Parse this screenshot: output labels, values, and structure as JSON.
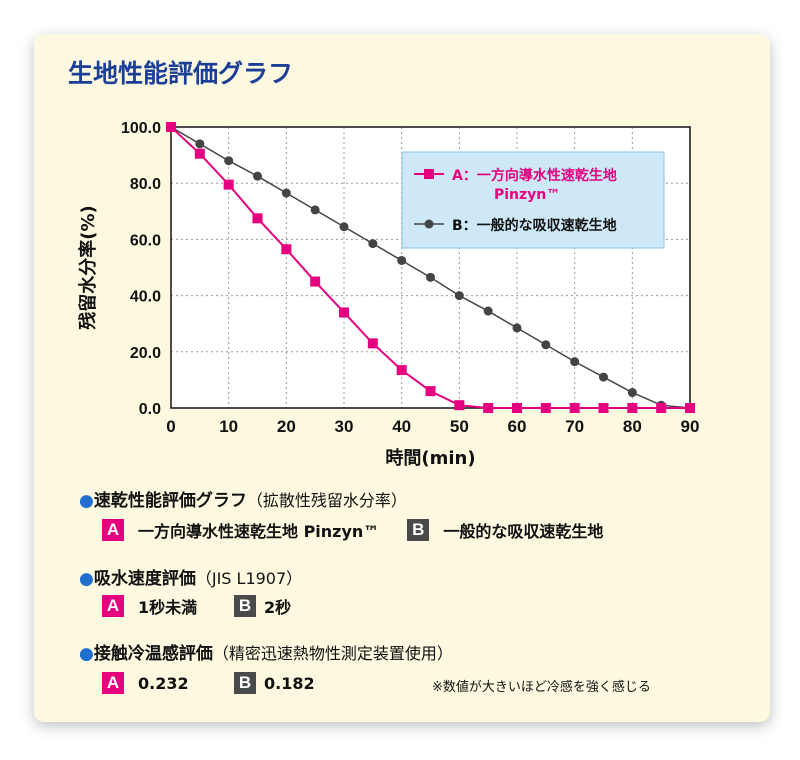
{
  "chart_data": {
    "type": "line",
    "title": "生地性能評価グラフ",
    "xlabel": "時間(min)",
    "ylabel": "残留水分率(%)",
    "xlim": [
      0,
      90
    ],
    "ylim": [
      0,
      100
    ],
    "x_ticks": [
      "0",
      "10",
      "20",
      "30",
      "40",
      "50",
      "60",
      "70",
      "80",
      "90"
    ],
    "y_ticks": [
      "0.0",
      "20.0",
      "40.0",
      "60.0",
      "80.0",
      "100.0"
    ],
    "legend_position": "top-right",
    "series": [
      {
        "name": "A：一方向導水性速乾生地",
        "name_line2": "Pinzyn™",
        "color": "#e5007f",
        "marker": "square",
        "points": [
          [
            0,
            100
          ],
          [
            5,
            90.5
          ],
          [
            10,
            79.5
          ],
          [
            15,
            67.5
          ],
          [
            20,
            56.5
          ],
          [
            25,
            45
          ],
          [
            30,
            34
          ],
          [
            35,
            23
          ],
          [
            40,
            13.5
          ],
          [
            45,
            6
          ],
          [
            50,
            1
          ],
          [
            55,
            0
          ],
          [
            60,
            0
          ],
          [
            65,
            0
          ],
          [
            70,
            0
          ],
          [
            75,
            0
          ],
          [
            80,
            0
          ],
          [
            85,
            0
          ],
          [
            90,
            0
          ]
        ]
      },
      {
        "name": "B：一般的な吸収速乾生地",
        "name_line2": "",
        "color": "#444444",
        "marker": "circle",
        "points": [
          [
            0,
            100
          ],
          [
            5,
            94
          ],
          [
            10,
            88
          ],
          [
            15,
            82.5
          ],
          [
            20,
            76.5
          ],
          [
            25,
            70.5
          ],
          [
            30,
            64.5
          ],
          [
            35,
            58.5
          ],
          [
            40,
            52.5
          ],
          [
            45,
            46.5
          ],
          [
            50,
            40
          ],
          [
            55,
            34.5
          ],
          [
            60,
            28.5
          ],
          [
            65,
            22.5
          ],
          [
            70,
            16.5
          ],
          [
            75,
            11
          ],
          [
            80,
            5.5
          ],
          [
            85,
            1
          ],
          [
            90,
            0
          ]
        ]
      }
    ]
  },
  "sections": {
    "graph": {
      "heading": "速乾性能評価グラフ",
      "note": "（拡散性残留水分率）",
      "a_label": "A",
      "a_text": "一方向導水性速乾生地 Pinzyn™",
      "b_label": "B",
      "b_text": "一般的な吸収速乾生地"
    },
    "absorption": {
      "heading": "吸水速度評価",
      "note": "（JIS L1907）",
      "a_label": "A",
      "a_text": "1秒未満",
      "b_label": "B",
      "b_text": "2秒"
    },
    "contact": {
      "heading": "接触冷温感評価",
      "note": "（精密迅速熱物性測定装置使用）",
      "a_label": "A",
      "a_text": "0.232",
      "b_label": "B",
      "b_text": "0.182",
      "remark": "※数値が大きいほど冷感を強く感じる"
    }
  },
  "colors": {
    "title": "#1b3f97",
    "badge_a": "#e5007f",
    "badge_b": "#4a4a4a",
    "bullet": "#1e6fd0",
    "legend_bg": "#cfe8f8"
  }
}
